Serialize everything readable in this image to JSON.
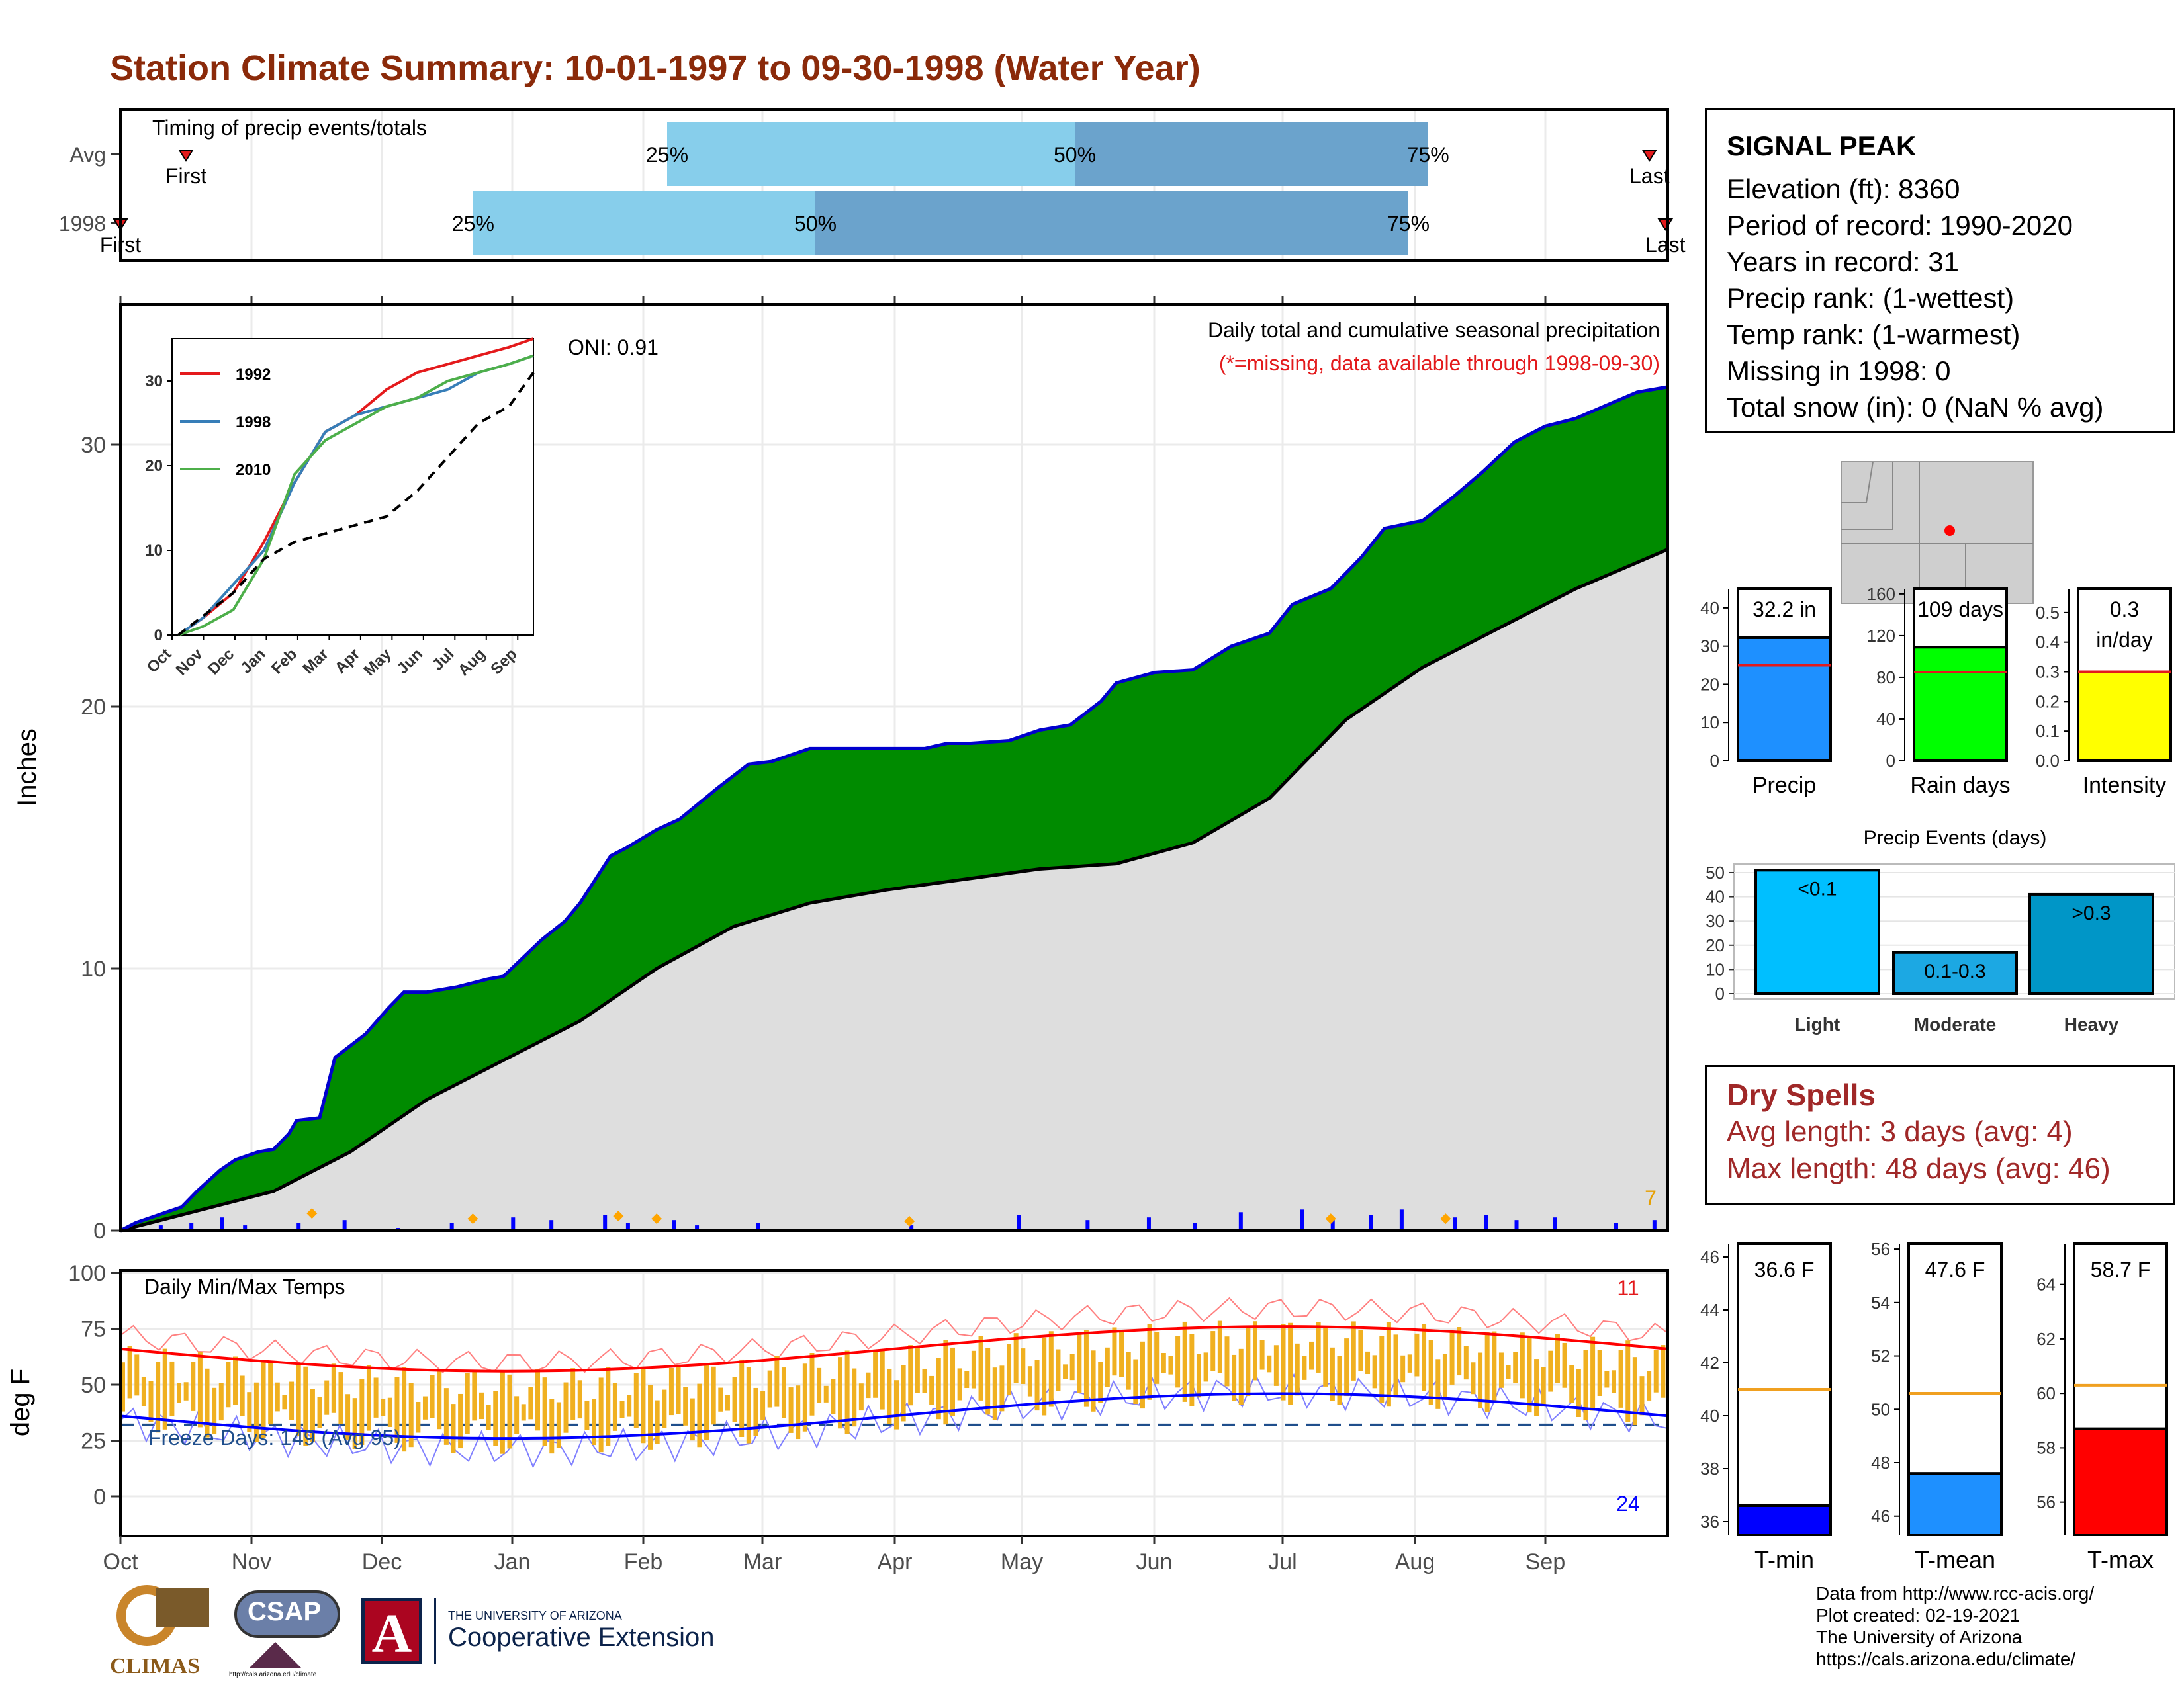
{
  "title": "Station Climate Summary: 10-01-1997 to 09-30-1998 (Water Year)",
  "timing_panel": {
    "label": "Timing of precip events/totals",
    "rows": [
      {
        "name": "Avg",
        "first_label": "First",
        "last_label": "Last",
        "first_m": 0.5,
        "last_m": 11.85,
        "q25": 4.2,
        "q50": 7.4,
        "q75": 10.1,
        "q25_label": "25%",
        "q50_label": "50%",
        "q75_label": "75%"
      },
      {
        "name": "1998",
        "first_label": "First",
        "last_label": "Last",
        "first_m": 0.0,
        "last_m": 11.98,
        "q25": 2.7,
        "q50": 5.4,
        "q75": 9.95,
        "q25_label": "25%",
        "q50_label": "50%",
        "q75_label": "75%"
      }
    ]
  },
  "precip_panel": {
    "subtitle": "Daily total and cumulative seasonal precipitation",
    "missing_note": "(*=missing, data available through 1998-09-30)",
    "oni": "ONI: 0.91",
    "ylabel": "Inches",
    "yticks": [
      "0",
      "10",
      "20",
      "30"
    ],
    "corner_count": "7"
  },
  "inset": {
    "yticks": [
      "0",
      "10",
      "20",
      "30"
    ],
    "months": [
      "Oct",
      "Nov",
      "Dec",
      "Jan",
      "Feb",
      "Mar",
      "Apr",
      "May",
      "Jun",
      "Jul",
      "Aug",
      "Sep"
    ],
    "legend": [
      {
        "name": "1992",
        "color": "#E41A1C"
      },
      {
        "name": "1998",
        "color": "#377EB8"
      },
      {
        "name": "2010",
        "color": "#4DAF4A"
      }
    ]
  },
  "temp_panel": {
    "label": "Daily Min/Max Temps",
    "ylabel": "deg F",
    "yticks": [
      "0",
      "25",
      "50",
      "75",
      "100"
    ],
    "freeze_text": "Freeze Days: 149 (Avg 95)",
    "max_count": "11",
    "min_count": "24"
  },
  "months": [
    "Oct",
    "Nov",
    "Dec",
    "Jan",
    "Feb",
    "Mar",
    "Apr",
    "May",
    "Jun",
    "Jul",
    "Aug",
    "Sep"
  ],
  "station_info": {
    "name": "SIGNAL PEAK",
    "lines": [
      "Elevation (ft): 8360",
      "Period of record: 1990-2020",
      "Years in record: 31",
      "Precip rank:  (1-wettest)",
      "Temp rank:  (1-warmest)",
      "Missing in 1998: 0",
      "Total snow (in): 0 (NaN % avg)"
    ]
  },
  "summary_bars": [
    {
      "label": "Precip",
      "value_label": "32.2 in",
      "value": 32.2,
      "avg": 25,
      "ymax": 45,
      "ticks": [
        "0",
        "10",
        "20",
        "30",
        "40"
      ],
      "tickvals": [
        0,
        10,
        20,
        30,
        40
      ],
      "color": "#1E90FF"
    },
    {
      "label": "Rain days",
      "value_label": "109 days",
      "value": 109,
      "avg": 85,
      "ymax": 165,
      "ticks": [
        "0",
        "40",
        "80",
        "120",
        "160"
      ],
      "tickvals": [
        0,
        40,
        80,
        120,
        160
      ],
      "color": "#00FF00"
    },
    {
      "label": "Intensity",
      "value_label": "0.3",
      "value_label2": "in/day",
      "value": 0.3,
      "avg": 0.3,
      "ymax": 0.58,
      "ticks": [
        "0.0",
        "0.1",
        "0.2",
        "0.3",
        "0.4",
        "0.5"
      ],
      "tickvals": [
        0,
        0.1,
        0.2,
        0.3,
        0.4,
        0.5
      ],
      "color": "#FFFF00"
    }
  ],
  "precip_events": {
    "title": "Precip Events (days)",
    "yticks": [
      "0",
      "10",
      "20",
      "30",
      "40",
      "50"
    ],
    "bars": [
      {
        "category": "Light",
        "label": "<0.1",
        "value": 51,
        "color": "#00BFFF"
      },
      {
        "category": "Moderate",
        "label": "0.1-0.3",
        "value": 17,
        "color": "#1CA8E3"
      },
      {
        "category": "Heavy",
        "label": ">0.3",
        "value": 41,
        "color": "#0096C7"
      }
    ]
  },
  "dry_spells": {
    "title": "Dry Spells",
    "avg": "Avg length: 3 days (avg: 4)",
    "max": "Max length: 48 days (avg: 46)"
  },
  "temp_bars": [
    {
      "label": "T-min",
      "value_label": "36.6 F",
      "value": 36.6,
      "avg": 41.0,
      "ymin": 35.5,
      "ymax": 46.5,
      "ticks": [
        "36",
        "38",
        "40",
        "42",
        "44",
        "46"
      ],
      "tickvals": [
        36,
        38,
        40,
        42,
        44,
        46
      ],
      "color": "#0000FF"
    },
    {
      "label": "T-mean",
      "value_label": "47.6 F",
      "value": 47.6,
      "avg": 50.6,
      "ymin": 45.3,
      "ymax": 56.2,
      "ticks": [
        "46",
        "48",
        "50",
        "52",
        "54",
        "56"
      ],
      "tickvals": [
        46,
        48,
        50,
        52,
        54,
        56
      ],
      "color": "#1E90FF"
    },
    {
      "label": "T-max",
      "value_label": "58.7 F",
      "value": 58.7,
      "avg": 60.3,
      "ymin": 54.8,
      "ymax": 65.5,
      "ticks": [
        "56",
        "58",
        "60",
        "62",
        "64"
      ],
      "tickvals": [
        56,
        58,
        60,
        62,
        64
      ],
      "color": "#FF0000"
    }
  ],
  "logos": {
    "climas": "CLIMAS",
    "csap": "CSAP",
    "csap_url": "http://cals.arizona.edu/climate",
    "ua_small": "THE UNIVERSITY OF ARIZONA",
    "ua_big": "Cooperative Extension"
  },
  "credits": [
    "Data from http://www.rcc-acis.org/",
    "Plot created: 02-19-2021",
    "The University of Arizona",
    "https://cals.arizona.edu/climate/"
  ]
}
